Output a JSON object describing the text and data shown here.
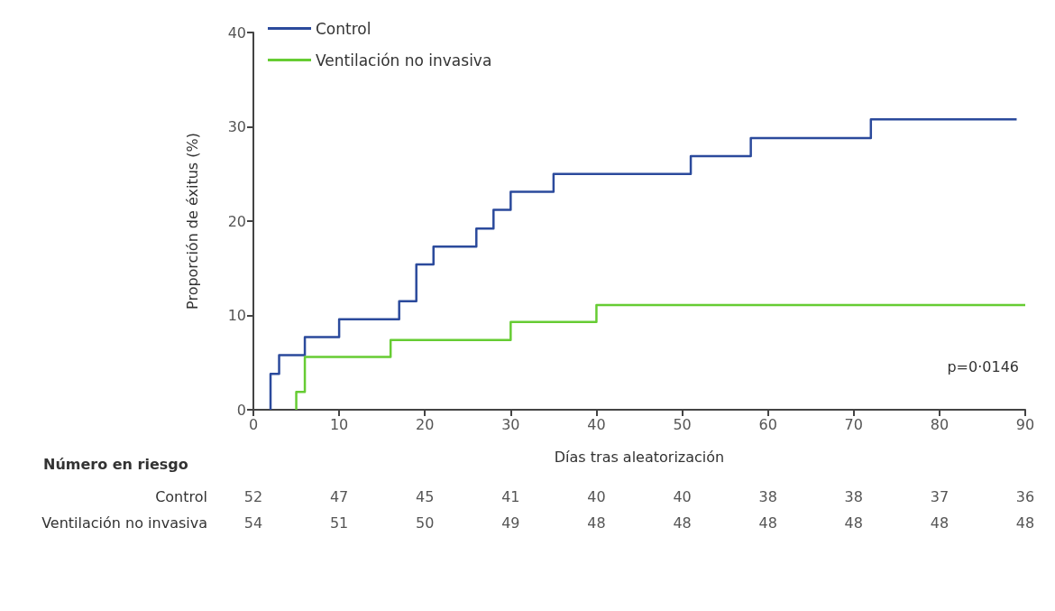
{
  "chart_data": {
    "type": "step",
    "xlabel": "Días tras aleatorización",
    "ylabel": "Proporción de éxitus (%)",
    "series": [
      {
        "name": "Control",
        "color": "#2b4a9c",
        "x": [
          2,
          2,
          3,
          6,
          10,
          17,
          19,
          21,
          26,
          28,
          30,
          35,
          51,
          58,
          72,
          89
        ],
        "values": [
          0,
          3.8,
          5.8,
          7.7,
          9.6,
          11.5,
          15.4,
          17.3,
          19.2,
          21.2,
          23.1,
          25,
          26.9,
          28.8,
          30.8,
          30.8
        ]
      },
      {
        "name": "Ventilación no invasiva",
        "color": "#66cc33",
        "x": [
          5,
          5,
          6,
          16,
          30,
          40,
          90
        ],
        "values": [
          0,
          1.9,
          5.6,
          7.4,
          9.3,
          11.1,
          11.1
        ]
      }
    ],
    "xlim": [
      0,
      90
    ],
    "xticks": [
      0,
      10,
      20,
      30,
      40,
      50,
      60,
      70,
      80,
      90
    ],
    "ylim": [
      0,
      40
    ],
    "yticks": [
      0,
      10,
      20,
      30,
      40
    ],
    "grid": false,
    "legend": "top left",
    "marker": "none",
    "line_style": "solid",
    "annotations": [
      "p=0·0146",
      "Número en riesgo",
      "Control",
      "52 47 45 41 40 40 38 38 37 36",
      "Ventilación no invasiva",
      "54 51 50 49 48 48 48 48 48 48"
    ]
  }
}
